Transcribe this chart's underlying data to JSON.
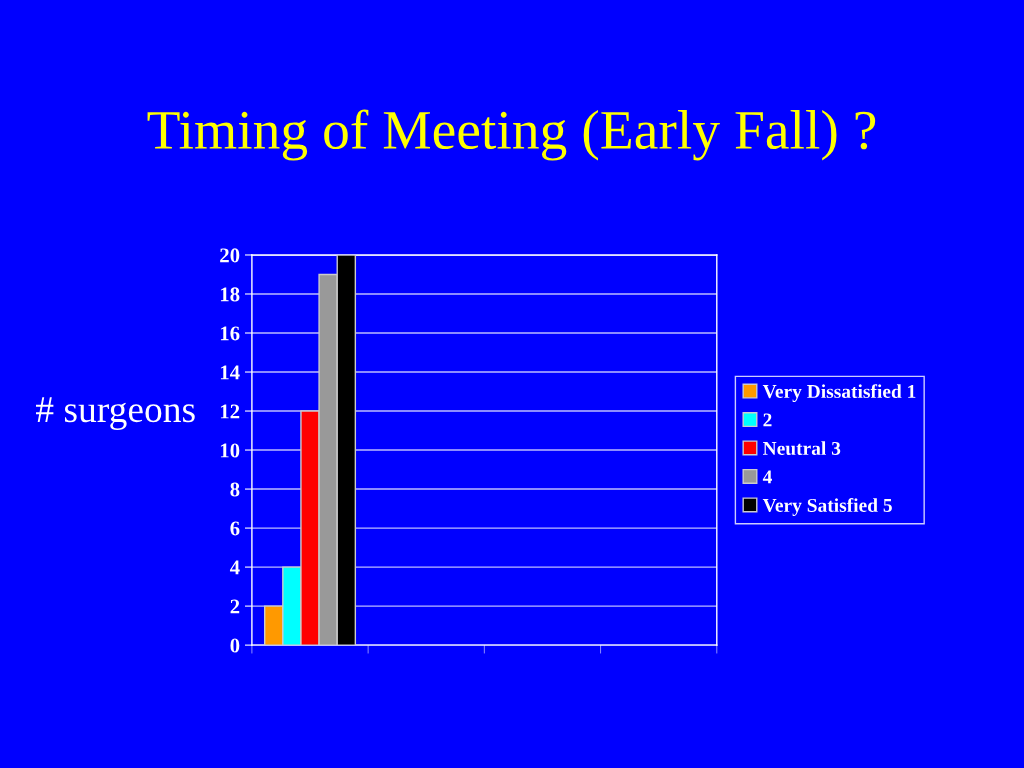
{
  "chart_data": {
    "type": "bar",
    "title": "Timing of Meeting (Early Fall) ?",
    "ylabel": "# surgeons",
    "categories": [
      null,
      null,
      null,
      null
    ],
    "series": [
      {
        "name": "Very Dissatisfied 1",
        "color": "#ff9900",
        "values": [
          2,
          null,
          null,
          null
        ]
      },
      {
        "name": "2",
        "color": "#00ffff",
        "values": [
          4,
          null,
          null,
          null
        ]
      },
      {
        "name": "Neutral 3",
        "color": "#ff0000",
        "values": [
          12,
          null,
          null,
          null
        ]
      },
      {
        "name": "4",
        "color": "#999999",
        "values": [
          19,
          null,
          null,
          null
        ]
      },
      {
        "name": "Very Satisfied 5",
        "color": "#000000",
        "values": [
          20,
          null,
          null,
          null
        ]
      }
    ],
    "ylim": [
      0,
      20
    ],
    "yticks": [
      0,
      2,
      4,
      6,
      8,
      10,
      12,
      14,
      16,
      18,
      20
    ],
    "grid": "y",
    "legend": "right",
    "tick_labels": "y"
  }
}
